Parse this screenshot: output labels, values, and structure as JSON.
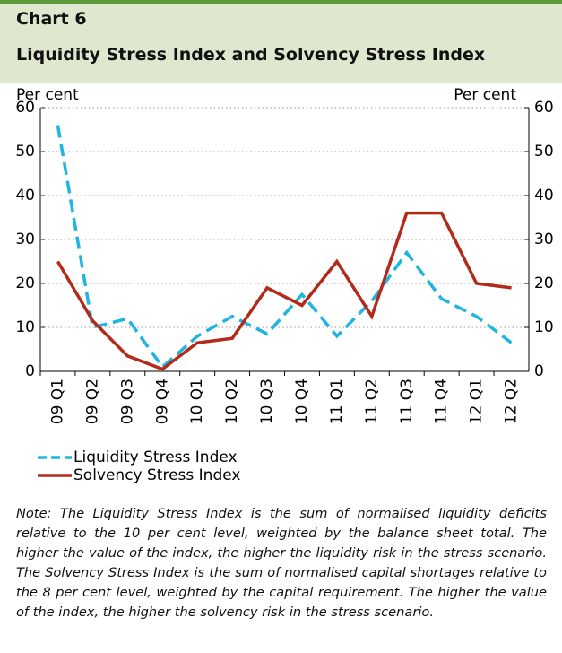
{
  "header": {
    "label": "Chart 6",
    "title": "Liquidity Stress Index and Solvency Stress Index"
  },
  "chart_data": {
    "type": "line",
    "y_label": "Per cent",
    "y2_label": "Per cent",
    "categories": [
      "09 Q1",
      "09 Q2",
      "09 Q3",
      "09 Q4",
      "10 Q1",
      "10 Q2",
      "10 Q3",
      "10 Q4",
      "11 Q1",
      "11 Q2",
      "11 Q3",
      "11 Q4",
      "12 Q1",
      "12 Q2"
    ],
    "series": [
      {
        "name": "Liquidity Stress Index",
        "color": "#1fb5e0",
        "dashed": true,
        "values": [
          56,
          10,
          12,
          1,
          8,
          12.5,
          8.5,
          17.5,
          8,
          16,
          27,
          16.5,
          12.5,
          6.5
        ]
      },
      {
        "name": "Solvency Stress Index",
        "color": "#b22a1a",
        "dashed": false,
        "values": [
          25,
          11.5,
          3.5,
          0.5,
          6.5,
          7.5,
          19,
          15,
          25,
          12.5,
          36,
          36,
          20,
          19
        ]
      }
    ],
    "ylim": [
      0,
      60
    ],
    "yticks": [
      0,
      10,
      20,
      30,
      40,
      50,
      60
    ],
    "y2lim": [
      0,
      60
    ],
    "y2ticks": [
      0,
      10,
      20,
      30,
      40,
      50,
      60
    ],
    "grid": true
  },
  "note": "Note: The Liquidity Stress Index is the sum of normalised liquidity deficits relative to the 10 per cent level, weighted by the balance sheet total. The higher the value of the index, the higher the liquidity risk in the stress scenario. The Solvency Stress Index is the sum of normalised capital shortages relative to the 8 per cent level, weighted by the capital requirement. The higher the value of the index, the higher the solvency risk in the stress scenario."
}
